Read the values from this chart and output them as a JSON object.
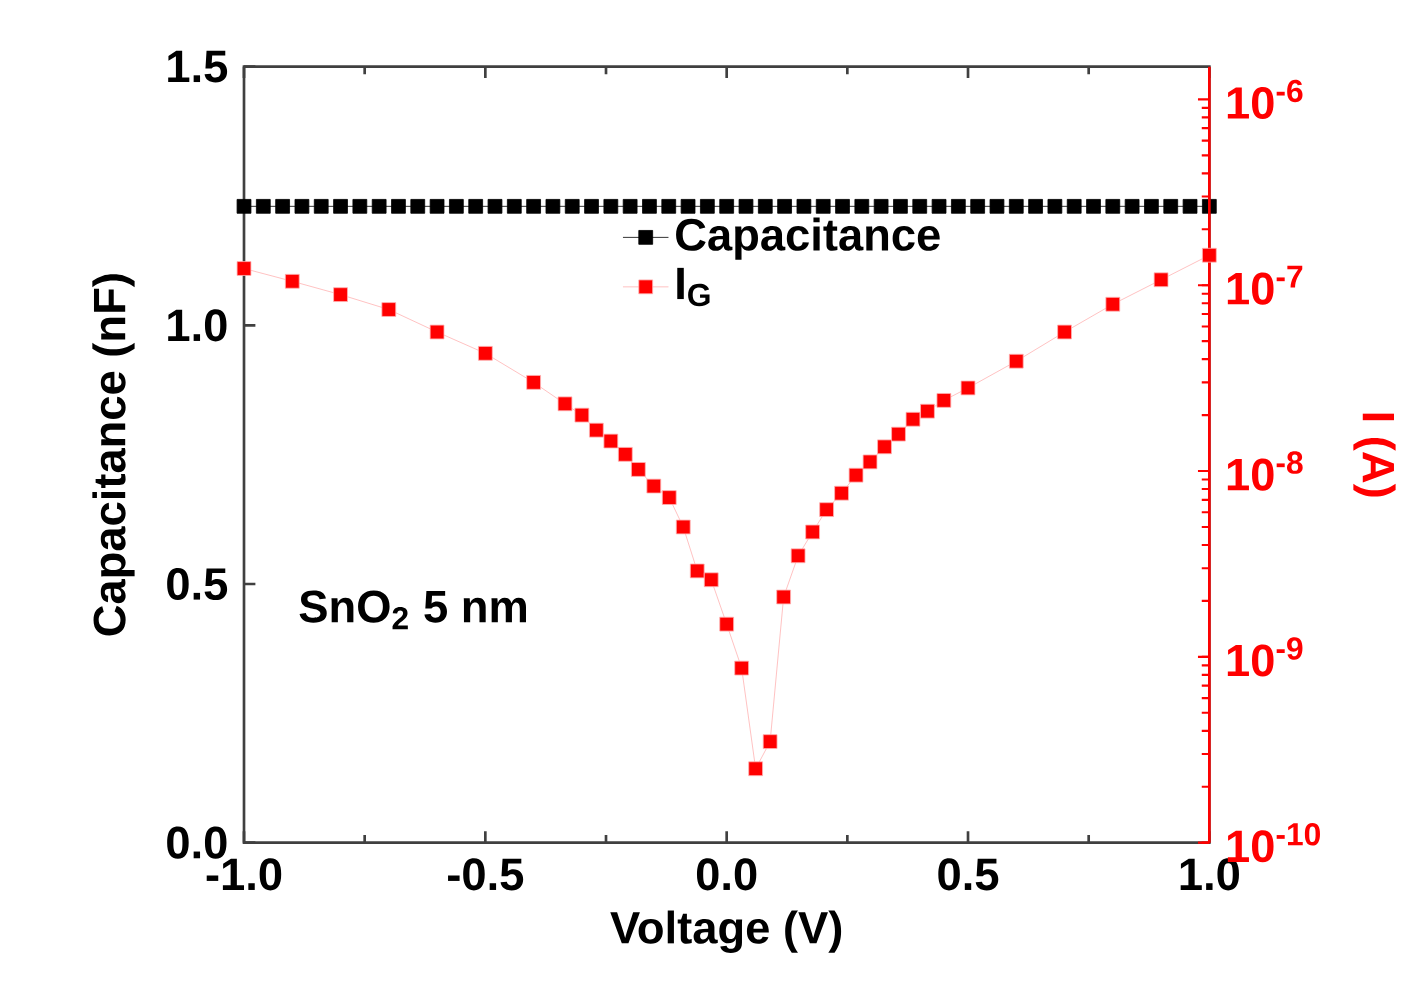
{
  "chart_data": {
    "type": "line",
    "xlabel": "Voltage (V)",
    "ylabel": "Capacitance (nF)",
    "y2label": "I (A)",
    "xlim": [
      -1,
      1
    ],
    "xticks": [
      {
        "value": -1,
        "label": "-1.0"
      },
      {
        "value": -0.5,
        "label": "-0.5"
      },
      {
        "value": 0,
        "label": "0.0"
      },
      {
        "value": 0.5,
        "label": "0.5"
      },
      {
        "value": 1,
        "label": "1.0"
      }
    ],
    "ylim": [
      0,
      1.5
    ],
    "yticks": [
      {
        "value": 0,
        "label": "0.0"
      },
      {
        "value": 0.5,
        "label": "0.5"
      },
      {
        "value": 1,
        "label": "1.0"
      },
      {
        "value": 1.5,
        "label": "1.5"
      }
    ],
    "y2lim": [
      1e-10,
      1.5e-06
    ],
    "y2ticks": [
      {
        "value": 1e-10,
        "label": "10$^{-10}$"
      },
      {
        "value": 1e-09,
        "label": "10$^{-9}$"
      },
      {
        "value": 1e-08,
        "label": "10$^{-8}$"
      },
      {
        "value": 1e-07,
        "label": "10$^{-7}$"
      },
      {
        "value": 1e-06,
        "label": "10$^{-6}$"
      }
    ],
    "log": "y2",
    "legend": "top",
    "marker": "square",
    "line_style": "solid",
    "annotations": [
      "SnO$_{2}$ 5 nm"
    ],
    "series": [
      {
        "name": "Capacitance",
        "color": "#000000",
        "x": [
          -1.0,
          -0.96,
          -0.92,
          -0.88,
          -0.84,
          -0.8,
          -0.76,
          -0.72,
          -0.68,
          -0.64,
          -0.6,
          -0.56,
          -0.52,
          -0.48,
          -0.44,
          -0.4,
          -0.36,
          -0.32,
          -0.28,
          -0.24,
          -0.2,
          -0.16,
          -0.12,
          -0.08,
          -0.04,
          0.0,
          0.04,
          0.08,
          0.12,
          0.16,
          0.2,
          0.24,
          0.28,
          0.32,
          0.36,
          0.4,
          0.44,
          0.48,
          0.52,
          0.56,
          0.6,
          0.64,
          0.68,
          0.72,
          0.76,
          0.8,
          0.84,
          0.88,
          0.92,
          0.96,
          1.0
        ],
        "values": [
          1.23,
          1.23,
          1.23,
          1.23,
          1.23,
          1.23,
          1.23,
          1.23,
          1.23,
          1.23,
          1.23,
          1.23,
          1.23,
          1.23,
          1.23,
          1.23,
          1.23,
          1.23,
          1.23,
          1.23,
          1.23,
          1.23,
          1.23,
          1.23,
          1.23,
          1.23,
          1.23,
          1.23,
          1.23,
          1.23,
          1.23,
          1.23,
          1.23,
          1.23,
          1.23,
          1.23,
          1.23,
          1.23,
          1.23,
          1.23,
          1.23,
          1.23,
          1.23,
          1.23,
          1.23,
          1.23,
          1.23,
          1.23,
          1.23,
          1.23,
          1.23
        ]
      },
      {
        "name": "I$_{G}$",
        "color": "#ff0000",
        "axis": "y2",
        "x": [
          -1.0,
          -0.9,
          -0.8,
          -0.7,
          -0.6,
          -0.5,
          -0.4,
          -0.335,
          -0.3,
          -0.27,
          -0.24,
          -0.21,
          -0.183,
          -0.151,
          -0.119,
          -0.09,
          -0.061,
          -0.032,
          0.0,
          0.031,
          0.06,
          0.09,
          0.118,
          0.148,
          0.178,
          0.207,
          0.238,
          0.268,
          0.297,
          0.327,
          0.356,
          0.386,
          0.416,
          0.45,
          0.5,
          0.6,
          0.7,
          0.8,
          0.9,
          1.0
        ],
        "values": [
          1.23e-07,
          1.05e-07,
          8.9e-08,
          7.4e-08,
          5.6e-08,
          4.3e-08,
          3e-08,
          2.3e-08,
          2e-08,
          1.66e-08,
          1.45e-08,
          1.23e-08,
          1.02e-08,
          8.3e-09,
          7.2e-09,
          5e-09,
          2.9e-09,
          2.6e-09,
          1.5e-09,
          8.7e-10,
          2.5e-10,
          3.5e-10,
          2.1e-09,
          3.5e-09,
          4.7e-09,
          6.2e-09,
          7.6e-09,
          9.5e-09,
          1.12e-08,
          1.35e-08,
          1.58e-08,
          1.9e-08,
          2.1e-08,
          2.4e-08,
          2.8e-08,
          3.9e-08,
          5.6e-08,
          7.9e-08,
          1.07e-07,
          1.45e-07
        ]
      }
    ]
  }
}
